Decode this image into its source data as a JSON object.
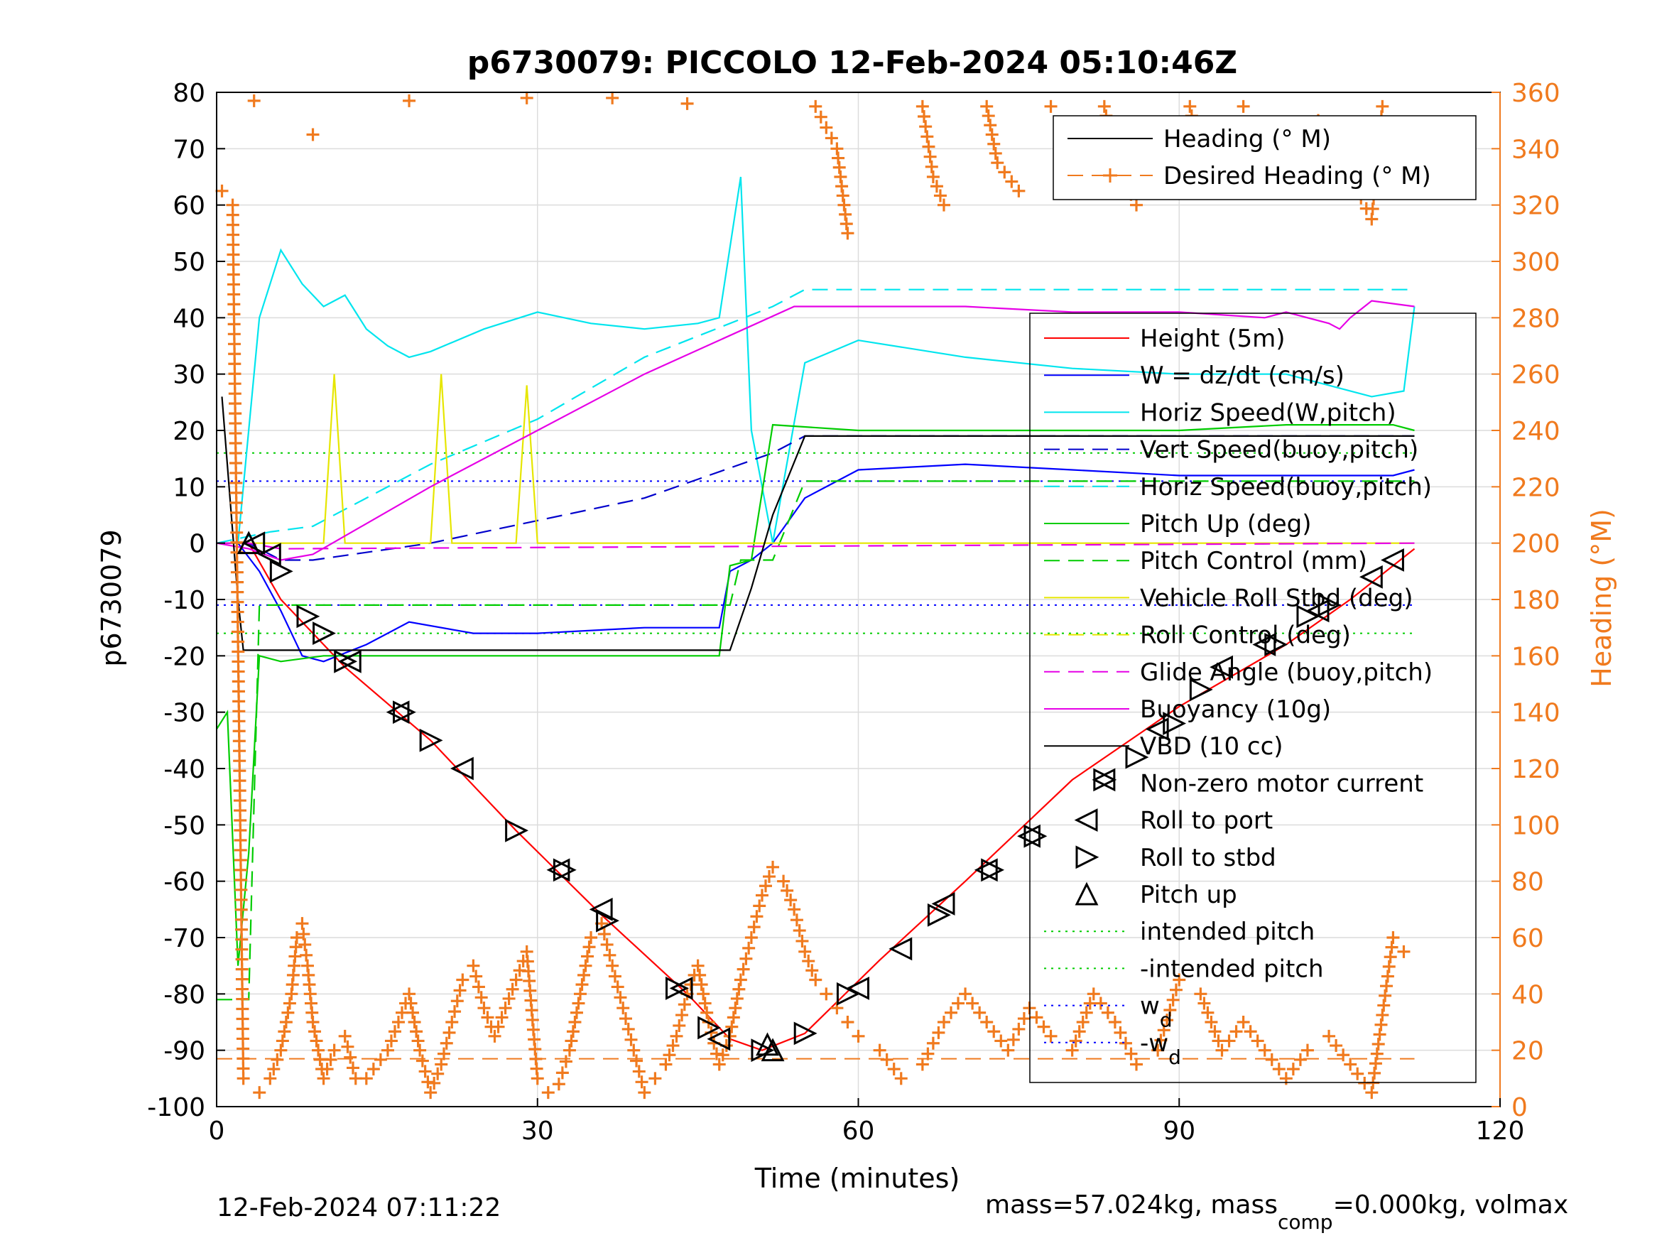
{
  "chart_data": {
    "type": "line",
    "title": "p6730079: PICCOLO 12-Feb-2024 05:10:46Z",
    "xlabel": "Time (minutes)",
    "ylabel": "p6730079",
    "ylabel_right": "Heading (°M)",
    "xlim": [
      0,
      120
    ],
    "ylim": [
      -100,
      80
    ],
    "ylim_right": [
      0,
      360
    ],
    "xticks": [
      "0",
      "30",
      "60",
      "90",
      "120"
    ],
    "yticks": [
      "80",
      "70",
      "60",
      "50",
      "40",
      "30",
      "20",
      "10",
      "0",
      "-10",
      "-20",
      "-30",
      "-40",
      "-50",
      "-60",
      "-70",
      "-80",
      "-90",
      "-100"
    ],
    "yticks_right": [
      "360",
      "340",
      "320",
      "300",
      "280",
      "260",
      "240",
      "220",
      "200",
      "180",
      "160",
      "140",
      "120",
      "100",
      "80",
      "60",
      "40",
      "20",
      "0"
    ],
    "grid": true,
    "footer_left": "12-Feb-2024 07:11:22",
    "footer_right": {
      "prefix": "mass=57.024kg, mass",
      "sub": "comp",
      "suffix": "=0.000kg, volmax"
    },
    "legend_heading": [
      {
        "label": "Heading (° M)",
        "color": "#000000",
        "style": "solid"
      },
      {
        "label": "Desired Heading (° M)",
        "color": "#f07a1e",
        "style": "plus"
      }
    ],
    "legend_main": [
      {
        "label": "Height (5m)",
        "color": "#ff0000",
        "style": "solid"
      },
      {
        "label": "W = dz/dt (cm/s)",
        "color": "#0000ff",
        "style": "solid"
      },
      {
        "label": "Horiz Speed(W,pitch)",
        "color": "#00e5ee",
        "style": "solid"
      },
      {
        "label": "Vert Speed(buoy,pitch)",
        "color": "#0000cc",
        "style": "dash"
      },
      {
        "label": "Horiz Speed(buoy,pitch)",
        "color": "#00e5ee",
        "style": "dash"
      },
      {
        "label": "Pitch Up (deg)",
        "color": "#00cc00",
        "style": "solid"
      },
      {
        "label": "Pitch Control (mm)",
        "color": "#00cc00",
        "style": "dash"
      },
      {
        "label": "Vehicle Roll Stbd (deg)",
        "color": "#e6e600",
        "style": "solid"
      },
      {
        "label": "Roll Control (deg)",
        "color": "#e6e600",
        "style": "dash"
      },
      {
        "label": "Glide Angle (buoy,pitch)",
        "color": "#e600e6",
        "style": "dash"
      },
      {
        "label": "Buoyancy (10g)",
        "color": "#e600e6",
        "style": "solid"
      },
      {
        "label": "VBD (10 cc)",
        "color": "#000000",
        "style": "solid"
      },
      {
        "label": "Non-zero motor current",
        "color": "#000000",
        "style": "none"
      },
      {
        "label": "Roll to port",
        "color": "#000000",
        "style": "tri-left"
      },
      {
        "label": "Roll to stbd",
        "color": "#000000",
        "style": "tri-right"
      },
      {
        "label": "Pitch up",
        "color": "#000000",
        "style": "tri-up"
      },
      {
        "label": "intended pitch",
        "color": "#00cc00",
        "style": "dot"
      },
      {
        "label": "-intended pitch",
        "color": "#00cc00",
        "style": "dot"
      },
      {
        "label": "w",
        "sub": "d",
        "color": "#0000ff",
        "style": "dot"
      },
      {
        "label": "-w",
        "sub": "d",
        "color": "#0000ff",
        "style": "dot"
      }
    ],
    "series": [
      {
        "name": "Height (5m)",
        "color": "#ff0000",
        "x": [
          0,
          3,
          6,
          12,
          20,
          28,
          36,
          44,
          48,
          51,
          55,
          62,
          70,
          80,
          90,
          100,
          106,
          112
        ],
        "y": [
          0,
          0,
          -10,
          -22,
          -35,
          -51,
          -66,
          -80,
          -88,
          -90,
          -87,
          -74,
          -60,
          -42,
          -29,
          -18,
          -10,
          -1
        ]
      },
      {
        "name": "W = dz/dt (cm/s)",
        "color": "#0000ff",
        "x": [
          0,
          2,
          4,
          6,
          8,
          10,
          14,
          18,
          24,
          30,
          40,
          47,
          48,
          50,
          52,
          55,
          60,
          70,
          80,
          90,
          100,
          110,
          112
        ],
        "y": [
          0,
          0,
          -5,
          -12,
          -20,
          -21,
          -18,
          -14,
          -16,
          -16,
          -15,
          -15,
          -5,
          -3,
          0,
          8,
          13,
          14,
          13,
          12,
          12,
          12,
          13
        ]
      },
      {
        "name": "Horiz Speed(W,pitch)",
        "color": "#00e5ee",
        "x": [
          0,
          2,
          4,
          6,
          8,
          10,
          12,
          14,
          16,
          18,
          20,
          25,
          30,
          35,
          40,
          45,
          47,
          49,
          50,
          51,
          52,
          55,
          60,
          70,
          80,
          90,
          100,
          108,
          111,
          112
        ],
        "y": [
          0,
          0,
          40,
          52,
          46,
          42,
          44,
          38,
          35,
          33,
          34,
          38,
          41,
          39,
          38,
          39,
          40,
          65,
          20,
          10,
          0,
          32,
          36,
          33,
          31,
          30,
          30,
          26,
          27,
          42
        ]
      },
      {
        "name": "Vert Speed(buoy,pitch)",
        "color": "#0000cc",
        "dash": "22,12",
        "x": [
          0,
          3,
          6,
          9,
          20,
          30,
          40,
          52,
          55,
          112
        ],
        "y": [
          0,
          0,
          -3,
          -3,
          0,
          4,
          8,
          16,
          19,
          19
        ]
      },
      {
        "name": "Horiz Speed(buoy,pitch)",
        "color": "#00e5ee",
        "dash": "22,12",
        "x": [
          0,
          5,
          9,
          20,
          30,
          40,
          52,
          55,
          112
        ],
        "y": [
          0,
          2,
          3,
          14,
          22,
          33,
          42,
          45,
          45
        ]
      },
      {
        "name": "Pitch Up (deg)",
        "color": "#00cc00",
        "x": [
          0,
          1,
          2,
          3,
          4,
          6,
          10,
          20,
          30,
          40,
          47,
          48,
          50,
          52,
          60,
          70,
          80,
          90,
          100,
          110,
          112
        ],
        "y": [
          -33,
          -30,
          -75,
          -55,
          -20,
          -21,
          -20,
          -20,
          -20,
          -20,
          -20,
          -4,
          -3,
          21,
          20,
          20,
          20,
          20,
          21,
          21,
          20
        ]
      },
      {
        "name": "Pitch Control (mm)",
        "color": "#00cc00",
        "dash": "22,12",
        "x": [
          0,
          3,
          4,
          12,
          48,
          49,
          52,
          55,
          112
        ],
        "y": [
          -81,
          -81,
          -11,
          -11,
          -11,
          -3,
          -3,
          11,
          11
        ]
      },
      {
        "name": "Vehicle Roll Stbd (deg)",
        "color": "#e6e600",
        "x": [
          0,
          10,
          11,
          12,
          20,
          21,
          22,
          28,
          29,
          30,
          40,
          50,
          60,
          70,
          80,
          90,
          100,
          110,
          112
        ],
        "y": [
          0,
          0,
          30,
          0,
          0,
          30,
          0,
          0,
          28,
          0,
          0,
          0,
          0,
          0,
          0,
          0,
          0,
          0,
          0
        ]
      },
      {
        "name": "Glide Angle (buoy,pitch)",
        "color": "#e600e6",
        "dash": "22,12",
        "x": [
          0,
          3,
          6,
          112
        ],
        "y": [
          0,
          0,
          -1,
          0
        ]
      },
      {
        "name": "Buoyancy (10g)",
        "color": "#e600e6",
        "x": [
          0,
          3,
          6,
          9,
          20,
          30,
          40,
          54,
          60,
          70,
          80,
          90,
          98,
          100,
          104,
          105,
          106,
          108,
          112
        ],
        "y": [
          0,
          -1,
          -3,
          -2,
          10,
          20,
          30,
          42,
          42,
          42,
          41,
          41,
          40,
          41,
          39,
          38,
          40,
          43,
          42
        ]
      },
      {
        "name": "VBD (10 cc)",
        "color": "#000000",
        "x": [
          0.5,
          2,
          2.5,
          3,
          10,
          20,
          30,
          40,
          48,
          50,
          52,
          55,
          112
        ],
        "y": [
          26,
          -10,
          -19,
          -19,
          -19,
          -19,
          -19,
          -19,
          -19,
          -8,
          5,
          19,
          19
        ]
      }
    ],
    "heading_series": {
      "name": "Desired Heading (° M)",
      "axis": "right",
      "x": [
        0.5,
        1.5,
        2.5,
        4,
        5,
        6,
        7,
        7.5,
        8,
        8.5,
        9,
        10,
        11,
        12,
        13,
        14,
        16,
        17,
        18,
        19,
        20,
        21,
        22,
        23,
        24,
        25,
        26,
        27,
        28,
        29,
        30,
        31,
        32,
        33,
        34,
        35,
        36,
        37,
        38,
        39,
        40,
        41,
        42,
        43,
        44,
        45,
        46,
        47,
        48,
        49,
        50,
        51,
        52,
        53,
        54,
        55,
        56,
        57,
        58,
        59,
        60,
        62,
        64,
        66,
        68,
        70,
        72,
        74,
        76,
        78,
        80,
        82,
        84,
        86,
        88,
        90,
        92,
        94,
        96,
        98,
        100,
        102,
        104,
        106,
        108,
        110,
        111
      ],
      "y": [
        325,
        320,
        10,
        5,
        10,
        20,
        40,
        60,
        65,
        50,
        30,
        10,
        20,
        25,
        10,
        10,
        20,
        30,
        40,
        20,
        5,
        15,
        30,
        45,
        50,
        35,
        25,
        35,
        45,
        55,
        10,
        5,
        8,
        20,
        40,
        60,
        65,
        50,
        35,
        20,
        5,
        10,
        15,
        25,
        40,
        50,
        30,
        15,
        25,
        45,
        60,
        75,
        85,
        80,
        70,
        55,
        45,
        40,
        35,
        30,
        25,
        20,
        10,
        15,
        30,
        40,
        30,
        20,
        35,
        25,
        20,
        40,
        30,
        15,
        20,
        45,
        40,
        20,
        30,
        20,
        10,
        20,
        25,
        15,
        5,
        60,
        55
      ]
    },
    "heading_top_series": {
      "name": "Desired Heading (° M) top",
      "axis": "right",
      "x": [
        3.5,
        9,
        18,
        29,
        37,
        44,
        56,
        58,
        59,
        66,
        67,
        68,
        72,
        73,
        75,
        78,
        83,
        84,
        86,
        91,
        92,
        96,
        103,
        106,
        108,
        109
      ],
      "y": [
        357,
        345,
        357,
        358,
        358,
        356,
        355,
        340,
        310,
        355,
        330,
        320,
        355,
        335,
        325,
        355,
        355,
        335,
        320,
        355,
        335,
        355,
        350,
        330,
        315,
        355
      ]
    },
    "desired_heading_value": 17,
    "intended_pitch": 16,
    "wd": 11,
    "markers": {
      "tri_left": [
        [
          3.5,
          0
        ],
        [
          5,
          -2
        ],
        [
          12.5,
          -21
        ],
        [
          17,
          -30
        ],
        [
          23,
          -40
        ],
        [
          32,
          -58
        ],
        [
          36,
          -65
        ],
        [
          43.5,
          -79
        ],
        [
          47,
          -88
        ],
        [
          60,
          -79
        ],
        [
          64,
          -72
        ],
        [
          68,
          -64
        ],
        [
          72,
          -58
        ],
        [
          76,
          -52
        ],
        [
          83,
          -42
        ],
        [
          88,
          -33
        ],
        [
          94,
          -22
        ],
        [
          98,
          -18
        ],
        [
          103,
          -12
        ],
        [
          108,
          -6
        ],
        [
          110,
          -3
        ]
      ],
      "tri_right": [
        [
          6,
          -5
        ],
        [
          8.5,
          -13
        ],
        [
          10,
          -16
        ],
        [
          12,
          -21
        ],
        [
          17.5,
          -30
        ],
        [
          20,
          -35
        ],
        [
          28,
          -51
        ],
        [
          32.5,
          -58
        ],
        [
          36.5,
          -67
        ],
        [
          43,
          -79
        ],
        [
          46,
          -86
        ],
        [
          51,
          -90
        ],
        [
          55,
          -87
        ],
        [
          59,
          -80
        ],
        [
          67.5,
          -66
        ],
        [
          72.5,
          -58
        ],
        [
          76.5,
          -52
        ],
        [
          83,
          -42
        ],
        [
          86,
          -38
        ],
        [
          89.5,
          -32
        ],
        [
          92,
          -26
        ],
        [
          99,
          -18
        ],
        [
          102,
          -13
        ],
        [
          104,
          -11
        ]
      ],
      "tri_up": [
        [
          3,
          0
        ],
        [
          51.5,
          -89
        ],
        [
          52,
          -90
        ]
      ]
    }
  }
}
